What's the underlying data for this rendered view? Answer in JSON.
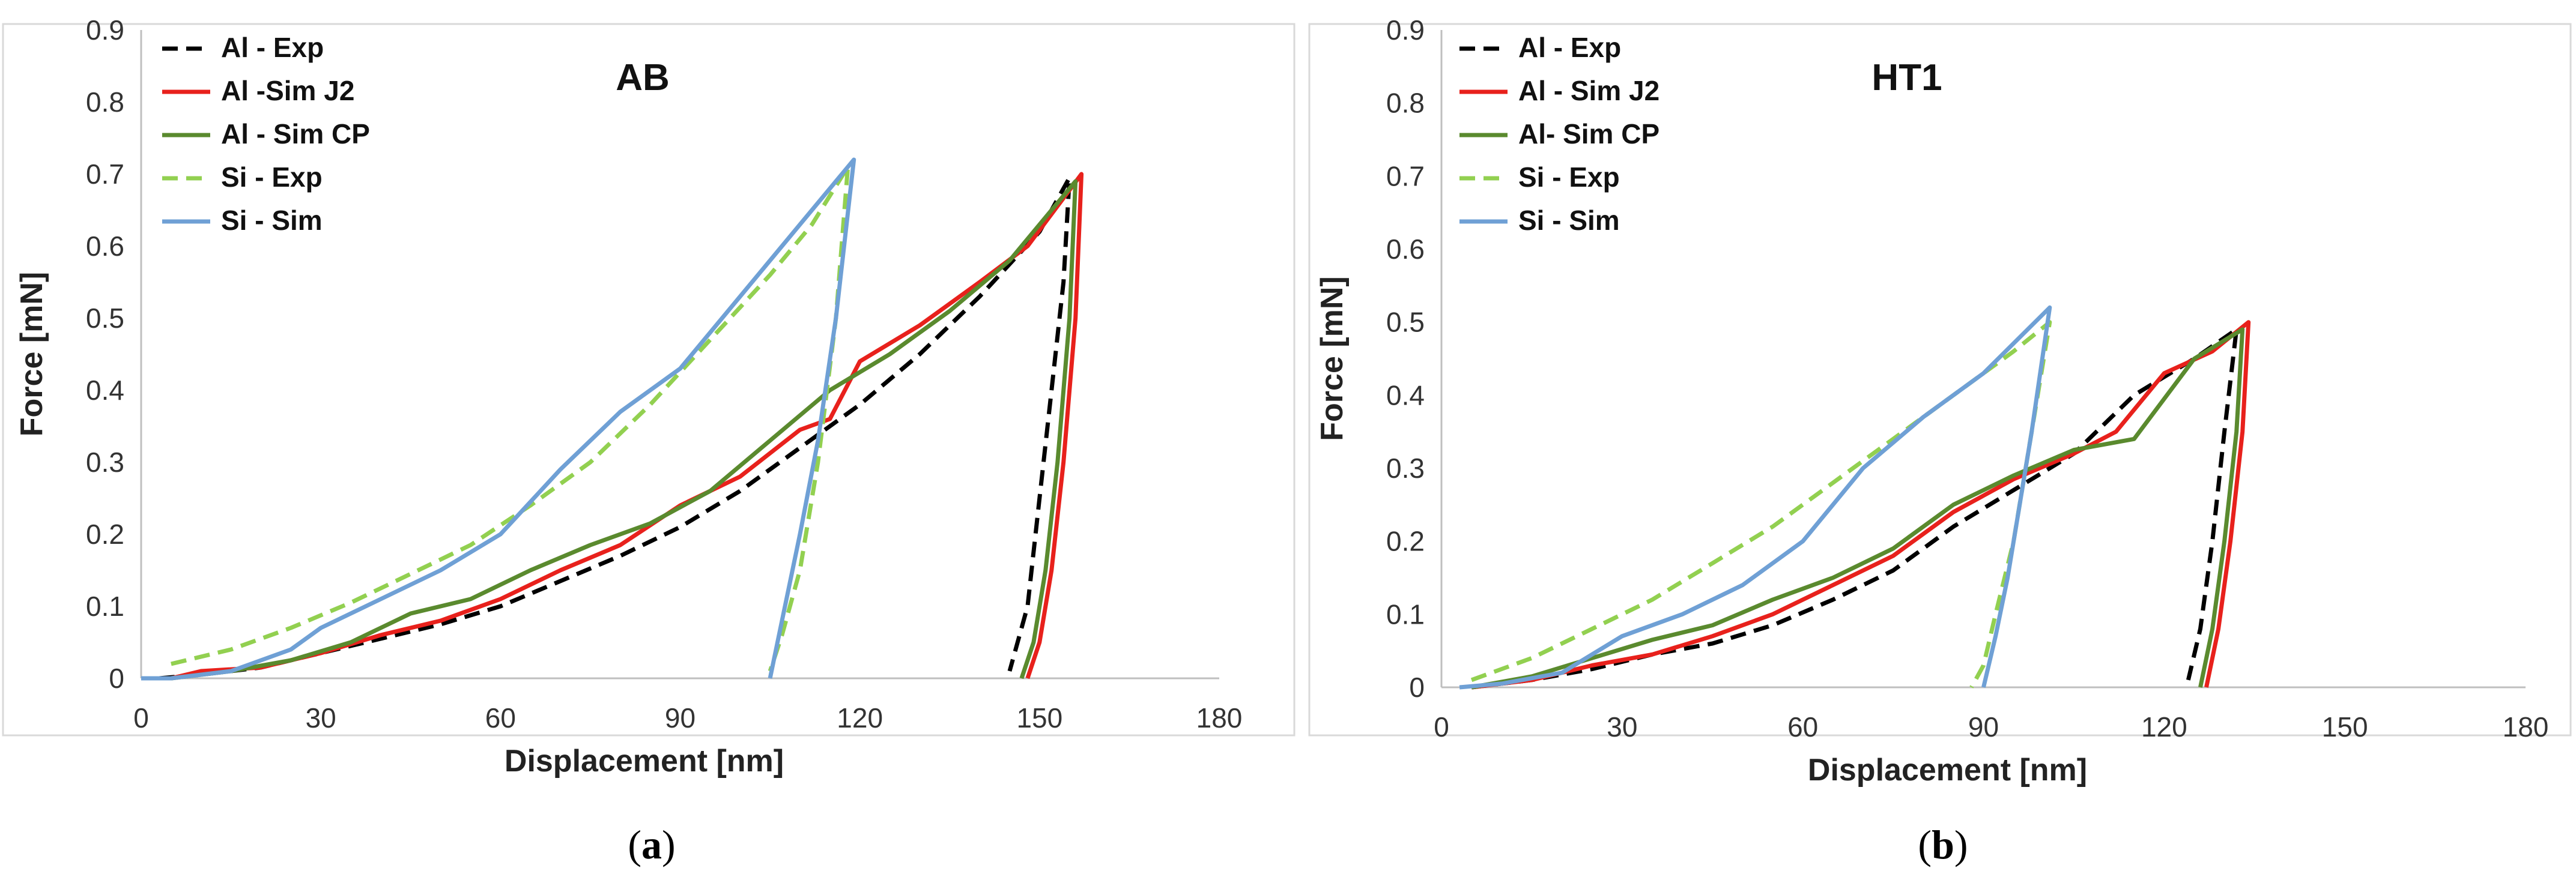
{
  "chart_data": [
    {
      "type": "line",
      "title": "AB",
      "caption_letter": "a",
      "xlabel": "Displacement [nm]",
      "ylabel": "Force [mN]",
      "xlim": [
        0,
        180
      ],
      "ylim": [
        0,
        0.9
      ],
      "xticks": [
        "0",
        "30",
        "60",
        "90",
        "120",
        "150",
        "180"
      ],
      "yticks": [
        "0",
        "0.1",
        "0.2",
        "0.3",
        "0.4",
        "0.5",
        "0.6",
        "0.7",
        "0.8",
        "0.9"
      ],
      "grid": false,
      "legend_position": "top-left",
      "series": [
        {
          "name": "Al - Exp",
          "color": "#000000",
          "dash": "dashed",
          "points": [
            [
              3,
              0
            ],
            [
              10,
              0.005
            ],
            [
              20,
              0.015
            ],
            [
              30,
              0.035
            ],
            [
              40,
              0.055
            ],
            [
              50,
              0.075
            ],
            [
              60,
              0.1
            ],
            [
              70,
              0.135
            ],
            [
              80,
              0.17
            ],
            [
              90,
              0.21
            ],
            [
              100,
              0.26
            ],
            [
              110,
              0.32
            ],
            [
              120,
              0.38
            ],
            [
              130,
              0.45
            ],
            [
              140,
              0.53
            ],
            [
              150,
              0.62
            ],
            [
              155,
              0.695
            ],
            [
              154,
              0.55
            ],
            [
              152,
              0.4
            ],
            [
              150,
              0.25
            ],
            [
              148,
              0.1
            ],
            [
              145,
              0.01
            ]
          ]
        },
        {
          "name": "Al -Sim J2",
          "color": "#e8211c",
          "dash": "solid",
          "points": [
            [
              5,
              0
            ],
            [
              10,
              0.01
            ],
            [
              20,
              0.015
            ],
            [
              30,
              0.035
            ],
            [
              40,
              0.06
            ],
            [
              50,
              0.08
            ],
            [
              60,
              0.11
            ],
            [
              70,
              0.15
            ],
            [
              80,
              0.185
            ],
            [
              90,
              0.24
            ],
            [
              100,
              0.28
            ],
            [
              110,
              0.345
            ],
            [
              115,
              0.36
            ],
            [
              120,
              0.44
            ],
            [
              130,
              0.49
            ],
            [
              140,
              0.55
            ],
            [
              148,
              0.6
            ],
            [
              157,
              0.7
            ],
            [
              156,
              0.5
            ],
            [
              154,
              0.3
            ],
            [
              152,
              0.15
            ],
            [
              150,
              0.05
            ],
            [
              148,
              0
            ]
          ]
        },
        {
          "name": "Al - Sim CP",
          "color": "#5a8a2e",
          "dash": "solid",
          "points": [
            [
              5,
              0
            ],
            [
              15,
              0.01
            ],
            [
              25,
              0.025
            ],
            [
              35,
              0.05
            ],
            [
              45,
              0.09
            ],
            [
              55,
              0.11
            ],
            [
              65,
              0.15
            ],
            [
              75,
              0.185
            ],
            [
              85,
              0.215
            ],
            [
              95,
              0.26
            ],
            [
              105,
              0.33
            ],
            [
              115,
              0.4
            ],
            [
              125,
              0.45
            ],
            [
              135,
              0.51
            ],
            [
              145,
              0.58
            ],
            [
              156,
              0.69
            ],
            [
              155,
              0.5
            ],
            [
              153,
              0.3
            ],
            [
              151,
              0.15
            ],
            [
              149,
              0.05
            ],
            [
              147,
              0
            ]
          ]
        },
        {
          "name": "Si - Exp",
          "color": "#92d050",
          "dash": "dashed",
          "points": [
            [
              5,
              0.02
            ],
            [
              15,
              0.04
            ],
            [
              25,
              0.07
            ],
            [
              35,
              0.105
            ],
            [
              45,
              0.145
            ],
            [
              55,
              0.185
            ],
            [
              65,
              0.24
            ],
            [
              75,
              0.3
            ],
            [
              85,
              0.38
            ],
            [
              95,
              0.47
            ],
            [
              105,
              0.56
            ],
            [
              112,
              0.63
            ],
            [
              118,
              0.71
            ],
            [
              116,
              0.5
            ],
            [
              113,
              0.3
            ],
            [
              110,
              0.15
            ],
            [
              107,
              0.06
            ],
            [
              105,
              0.01
            ]
          ]
        },
        {
          "name": "Si - Sim",
          "color": "#6fa0d5",
          "dash": "solid",
          "points": [
            [
              0,
              0
            ],
            [
              5,
              0
            ],
            [
              15,
              0.01
            ],
            [
              25,
              0.04
            ],
            [
              30,
              0.07
            ],
            [
              40,
              0.11
            ],
            [
              50,
              0.15
            ],
            [
              60,
              0.2
            ],
            [
              70,
              0.29
            ],
            [
              80,
              0.37
            ],
            [
              90,
              0.43
            ],
            [
              100,
              0.53
            ],
            [
              110,
              0.63
            ],
            [
              119,
              0.72
            ],
            [
              116,
              0.5
            ],
            [
              113,
              0.33
            ],
            [
              110,
              0.2
            ],
            [
              107,
              0.08
            ],
            [
              105,
              0
            ]
          ]
        }
      ]
    },
    {
      "type": "line",
      "title": "HT1",
      "caption_letter": "b",
      "xlabel": "Displacement [nm]",
      "ylabel": "Force [mN]",
      "xlim": [
        0,
        180
      ],
      "ylim": [
        0,
        0.9
      ],
      "xticks": [
        "0",
        "30",
        "60",
        "90",
        "120",
        "150",
        "180"
      ],
      "yticks": [
        "0",
        "0.1",
        "0.2",
        "0.3",
        "0.4",
        "0.5",
        "0.6",
        "0.7",
        "0.8",
        "0.9"
      ],
      "grid": false,
      "legend_position": "top-left",
      "series": [
        {
          "name": "Al - Exp",
          "color": "#000000",
          "dash": "dashed",
          "points": [
            [
              5,
              0
            ],
            [
              15,
              0.01
            ],
            [
              25,
              0.025
            ],
            [
              35,
              0.045
            ],
            [
              45,
              0.06
            ],
            [
              55,
              0.085
            ],
            [
              65,
              0.12
            ],
            [
              75,
              0.16
            ],
            [
              85,
              0.22
            ],
            [
              95,
              0.27
            ],
            [
              105,
              0.32
            ],
            [
              115,
              0.4
            ],
            [
              125,
              0.45
            ],
            [
              132,
              0.49
            ],
            [
              130,
              0.35
            ],
            [
              128,
              0.2
            ],
            [
              126,
              0.08
            ],
            [
              124,
              0.01
            ]
          ]
        },
        {
          "name": "Al - Sim J2",
          "color": "#e8211c",
          "dash": "solid",
          "points": [
            [
              5,
              0
            ],
            [
              15,
              0.01
            ],
            [
              25,
              0.03
            ],
            [
              35,
              0.045
            ],
            [
              45,
              0.07
            ],
            [
              55,
              0.1
            ],
            [
              65,
              0.14
            ],
            [
              75,
              0.18
            ],
            [
              85,
              0.24
            ],
            [
              95,
              0.285
            ],
            [
              105,
              0.32
            ],
            [
              112,
              0.35
            ],
            [
              120,
              0.43
            ],
            [
              128,
              0.46
            ],
            [
              134,
              0.5
            ],
            [
              133,
              0.35
            ],
            [
              131,
              0.2
            ],
            [
              129,
              0.08
            ],
            [
              127,
              0
            ]
          ]
        },
        {
          "name": "Al- Sim CP",
          "color": "#5a8a2e",
          "dash": "solid",
          "points": [
            [
              5,
              0
            ],
            [
              15,
              0.015
            ],
            [
              25,
              0.04
            ],
            [
              35,
              0.065
            ],
            [
              45,
              0.085
            ],
            [
              55,
              0.12
            ],
            [
              65,
              0.15
            ],
            [
              75,
              0.19
            ],
            [
              85,
              0.25
            ],
            [
              95,
              0.29
            ],
            [
              105,
              0.325
            ],
            [
              115,
              0.34
            ],
            [
              125,
              0.45
            ],
            [
              133,
              0.49
            ],
            [
              132,
              0.35
            ],
            [
              130,
              0.2
            ],
            [
              128,
              0.08
            ],
            [
              126,
              0
            ]
          ]
        },
        {
          "name": "Si - Exp",
          "color": "#92d050",
          "dash": "dashed",
          "points": [
            [
              5,
              0.01
            ],
            [
              15,
              0.04
            ],
            [
              25,
              0.08
            ],
            [
              35,
              0.12
            ],
            [
              45,
              0.17
            ],
            [
              55,
              0.22
            ],
            [
              65,
              0.28
            ],
            [
              75,
              0.34
            ],
            [
              85,
              0.4
            ],
            [
              95,
              0.46
            ],
            [
              101,
              0.5
            ],
            [
              98,
              0.35
            ],
            [
              95,
              0.2
            ],
            [
              92,
              0.1
            ],
            [
              90,
              0.03
            ],
            [
              88,
              0
            ]
          ]
        },
        {
          "name": "Si - Sim",
          "color": "#6fa0d5",
          "dash": "solid",
          "points": [
            [
              3,
              0
            ],
            [
              10,
              0.005
            ],
            [
              20,
              0.02
            ],
            [
              30,
              0.07
            ],
            [
              40,
              0.1
            ],
            [
              50,
              0.14
            ],
            [
              60,
              0.2
            ],
            [
              70,
              0.3
            ],
            [
              80,
              0.37
            ],
            [
              90,
              0.43
            ],
            [
              101,
              0.52
            ],
            [
              98,
              0.35
            ],
            [
              96,
              0.25
            ],
            [
              94,
              0.15
            ],
            [
              92,
              0.07
            ],
            [
              90,
              0
            ]
          ]
        }
      ]
    }
  ]
}
